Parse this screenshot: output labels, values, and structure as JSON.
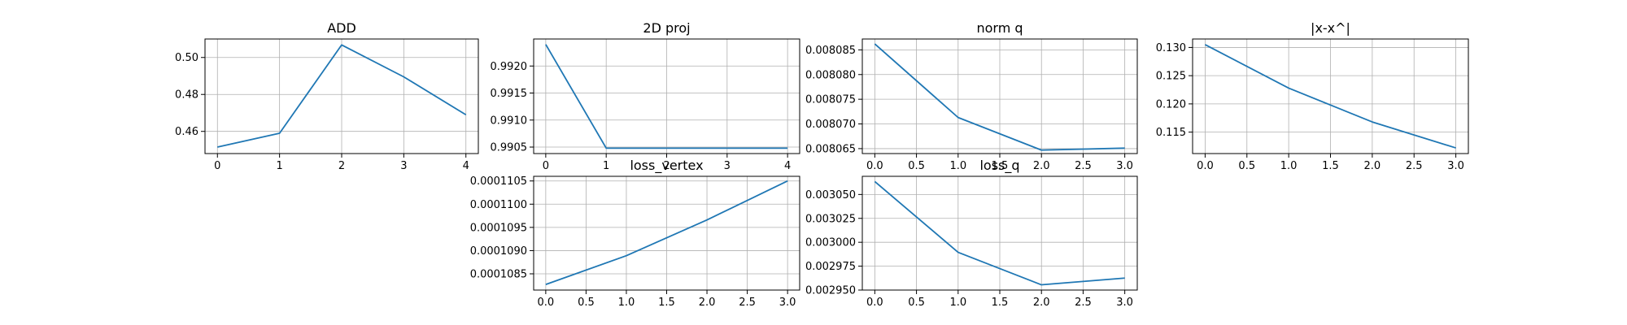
{
  "figure": {
    "background": "#ffffff",
    "line_color": "#1f77b4",
    "grid_color": "#b0b0b0"
  },
  "chart_data": [
    {
      "type": "line",
      "title": "ADD",
      "x": [
        0,
        1,
        2,
        3,
        4
      ],
      "series": [
        {
          "values": [
            0.4515,
            0.459,
            0.5068,
            0.4895,
            0.469
          ]
        }
      ],
      "xlim": [
        -0.2,
        4.2
      ],
      "ylim": [
        0.448,
        0.51
      ],
      "xticks": [
        0,
        1,
        2,
        3,
        4
      ],
      "xtick_labels": [
        "0",
        "1",
        "2",
        "3",
        "4"
      ],
      "yticks": [
        0.46,
        0.48,
        0.5
      ],
      "ytick_labels": [
        "0.46",
        "0.48",
        "0.50"
      ],
      "grid": true
    },
    {
      "type": "line",
      "title": "2D proj",
      "x": [
        0,
        1,
        2,
        3,
        4
      ],
      "series": [
        {
          "values": [
            0.9924,
            0.99048,
            0.99048,
            0.99048,
            0.99048
          ]
        }
      ],
      "xlim": [
        -0.2,
        4.2
      ],
      "ylim": [
        0.99038,
        0.9925
      ],
      "xticks": [
        0,
        1,
        2,
        3,
        4
      ],
      "xtick_labels": [
        "0",
        "1",
        "2",
        "3",
        "4"
      ],
      "yticks": [
        0.9905,
        0.991,
        0.9915,
        0.992
      ],
      "ytick_labels": [
        "0.9905",
        "0.9910",
        "0.9915",
        "0.9920"
      ],
      "grid": true
    },
    {
      "type": "line",
      "title": "norm q",
      "x": [
        0,
        1,
        2,
        3
      ],
      "series": [
        {
          "values": [
            0.0080862,
            0.0080713,
            0.0080647,
            0.0080651
          ]
        }
      ],
      "xlim": [
        -0.15,
        3.15
      ],
      "ylim": [
        0.008064,
        0.0080872
      ],
      "xticks": [
        0,
        0.5,
        1,
        1.5,
        2,
        2.5,
        3
      ],
      "xtick_labels": [
        "0.0",
        "0.5",
        "1.0",
        "1.5",
        "2.0",
        "2.5",
        "3.0"
      ],
      "yticks": [
        0.008065,
        0.00807,
        0.008075,
        0.00808,
        0.008085
      ],
      "ytick_labels": [
        "0.008065",
        "0.008070",
        "0.008075",
        "0.008080",
        "0.008085"
      ],
      "grid": true
    },
    {
      "type": "line",
      "title": "|x-x^|",
      "x": [
        0,
        1,
        2,
        3
      ],
      "series": [
        {
          "values": [
            0.1305,
            0.1228,
            0.1168,
            0.1122
          ]
        }
      ],
      "xlim": [
        -0.15,
        3.15
      ],
      "ylim": [
        0.1112,
        0.1315
      ],
      "xticks": [
        0,
        0.5,
        1,
        1.5,
        2,
        2.5,
        3
      ],
      "xtick_labels": [
        "0.0",
        "0.5",
        "1.0",
        "1.5",
        "2.0",
        "2.5",
        "3.0"
      ],
      "yticks": [
        0.115,
        0.12,
        0.125,
        0.13
      ],
      "ytick_labels": [
        "0.115",
        "0.120",
        "0.125",
        "0.130"
      ],
      "grid": true
    },
    {
      "type": "line",
      "title": "loss_vertex",
      "x": [
        0,
        1,
        2,
        3
      ],
      "series": [
        {
          "values": [
            0.00010827,
            0.00010889,
            0.00010966,
            0.0001105
          ]
        }
      ],
      "xlim": [
        -0.15,
        3.15
      ],
      "ylim": [
        0.00010815,
        0.0001106
      ],
      "xticks": [
        0,
        0.5,
        1,
        1.5,
        2,
        2.5,
        3
      ],
      "xtick_labels": [
        "0.0",
        "0.5",
        "1.0",
        "1.5",
        "2.0",
        "2.5",
        "3.0"
      ],
      "yticks": [
        0.0001085,
        0.000109,
        0.0001095,
        0.00011,
        0.0001105
      ],
      "ytick_labels": [
        "0.0001085",
        "0.0001090",
        "0.0001095",
        "0.0001100",
        "0.0001105"
      ],
      "grid": true
    },
    {
      "type": "line",
      "title": "loss_q",
      "x": [
        0,
        1,
        2,
        3
      ],
      "series": [
        {
          "values": [
            0.0030635,
            0.0029895,
            0.0029555,
            0.0029625
          ]
        }
      ],
      "xlim": [
        -0.15,
        3.15
      ],
      "ylim": [
        0.00295,
        0.003069
      ],
      "xticks": [
        0,
        0.5,
        1,
        1.5,
        2,
        2.5,
        3
      ],
      "xtick_labels": [
        "0.0",
        "0.5",
        "1.0",
        "1.5",
        "2.0",
        "2.5",
        "3.0"
      ],
      "yticks": [
        0.00295,
        0.002975,
        0.003,
        0.003025,
        0.00305
      ],
      "ytick_labels": [
        "0.002950",
        "0.002975",
        "0.003000",
        "0.003025",
        "0.003050"
      ],
      "grid": true
    }
  ]
}
